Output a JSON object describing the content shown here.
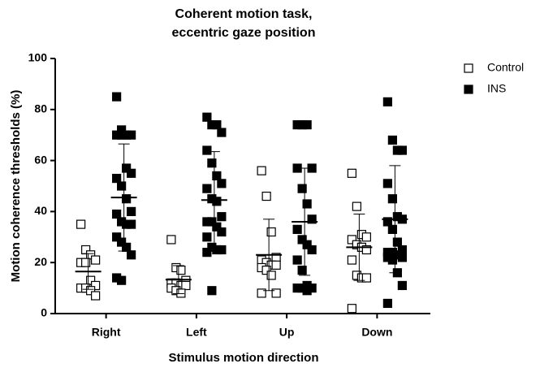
{
  "chart_data": {
    "type": "dot",
    "title_lines": [
      "Coherent motion task,",
      "eccentric gaze position"
    ],
    "x_label": "Stimulus motion direction",
    "y_label": "Motion coherence thresholds (%)",
    "categories": [
      "Right",
      "Left",
      "Up",
      "Down"
    ],
    "ylim": [
      0,
      100
    ],
    "yticks": [
      0,
      20,
      40,
      60,
      80,
      100
    ],
    "legend": "top-right",
    "series": [
      {
        "name": "Control",
        "color": "#000000",
        "filled": false,
        "values": [
          [
            35,
            25,
            23,
            21,
            20,
            20,
            13,
            11,
            10,
            10,
            9,
            7
          ],
          [
            29,
            18,
            17,
            13,
            12,
            12,
            11,
            11,
            10,
            9,
            8
          ],
          [
            56,
            46,
            32,
            22,
            21,
            20,
            19,
            19,
            18,
            17,
            15,
            8,
            8
          ],
          [
            55,
            42,
            31,
            30,
            29,
            27,
            26,
            25,
            21,
            15,
            14,
            14,
            2
          ]
        ],
        "mean": [
          16.5,
          13.3,
          23,
          26
        ],
        "sd": [
          7,
          5.5,
          14,
          13
        ]
      },
      {
        "name": "INS",
        "color": "#000000",
        "filled": true,
        "values": [
          [
            85,
            72,
            70,
            70,
            70,
            70,
            57,
            55,
            53,
            50,
            45,
            40,
            39,
            36,
            35,
            35,
            30,
            28,
            26,
            23,
            14,
            13
          ],
          [
            77,
            74,
            74,
            71,
            64,
            59,
            54,
            51,
            49,
            45,
            44,
            38,
            36,
            36,
            34,
            32,
            30,
            26,
            25,
            25,
            24,
            9
          ],
          [
            74,
            74,
            74,
            57,
            57,
            49,
            43,
            37,
            33,
            29,
            27,
            25,
            21,
            17,
            11,
            10,
            10,
            10,
            9
          ],
          [
            83,
            68,
            64,
            64,
            51,
            45,
            38,
            37,
            36,
            33,
            28,
            25,
            24,
            24,
            23,
            22,
            22,
            21,
            16,
            11,
            4
          ]
        ],
        "mean": [
          45.5,
          44.5,
          36,
          37
        ],
        "sd": [
          21,
          19,
          21,
          21
        ]
      }
    ]
  }
}
